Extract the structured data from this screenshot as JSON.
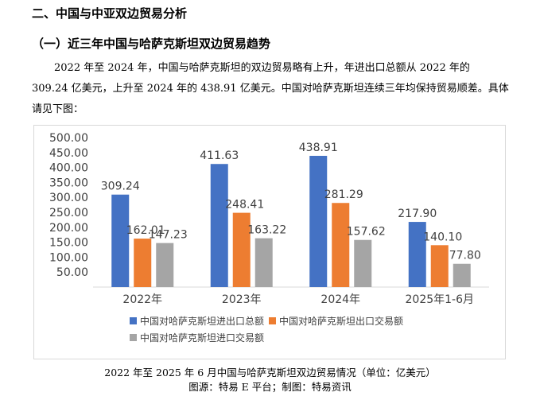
{
  "section_title": "二、中国与中亚双边贸易分析",
  "subsection_title": "（一）近三年中国与哈萨克斯坦双边贸易趋势",
  "paragraph": "2022 年至 2024 年，中国与哈萨克斯坦的双边贸易略有上升，年进出口总额从 2022 年的 309.24 亿美元，上升至 2024 年的 438.91 亿美元。中国对哈萨克斯坦连续三年均保持贸易顺差。具体请见下图：",
  "chart_data": {
    "type": "bar",
    "categories": [
      "2022年",
      "2023年",
      "2024年",
      "2025年1-6月"
    ],
    "series": [
      {
        "name": "中国对哈萨克斯坦进出口总额",
        "values": [
          309.24,
          411.63,
          438.91,
          217.9
        ],
        "labels": [
          "309.24",
          "411.63",
          "438.91",
          "217.90"
        ],
        "color": "#4472c4"
      },
      {
        "name": "中国对哈萨克斯坦出口交易额",
        "values": [
          162.01,
          248.41,
          281.29,
          140.1
        ],
        "labels": [
          "162.01",
          "248.41",
          "281.29",
          "140.10"
        ],
        "color": "#ed7d31"
      },
      {
        "name": "中国对哈萨克斯坦进口交易额",
        "values": [
          147.23,
          163.22,
          157.62,
          77.8
        ],
        "labels": [
          "147.23",
          "163.22",
          "157.62",
          "77.80"
        ],
        "color": "#a5a5a5"
      }
    ],
    "yticks": [
      "",
      "50.00",
      "100.00",
      "150.00",
      "200.00",
      "250.00",
      "300.00",
      "350.00",
      "400.00",
      "450.00",
      "500.00"
    ],
    "ylim": [
      0,
      500
    ],
    "grid": false,
    "legend_position": "bottom"
  },
  "caption": "2022 年至 2025 年 6 月中国与哈萨克斯坦双边贸易情况（单位：亿美元）",
  "source": "图源：特易 E 平台；制图：特易资讯"
}
